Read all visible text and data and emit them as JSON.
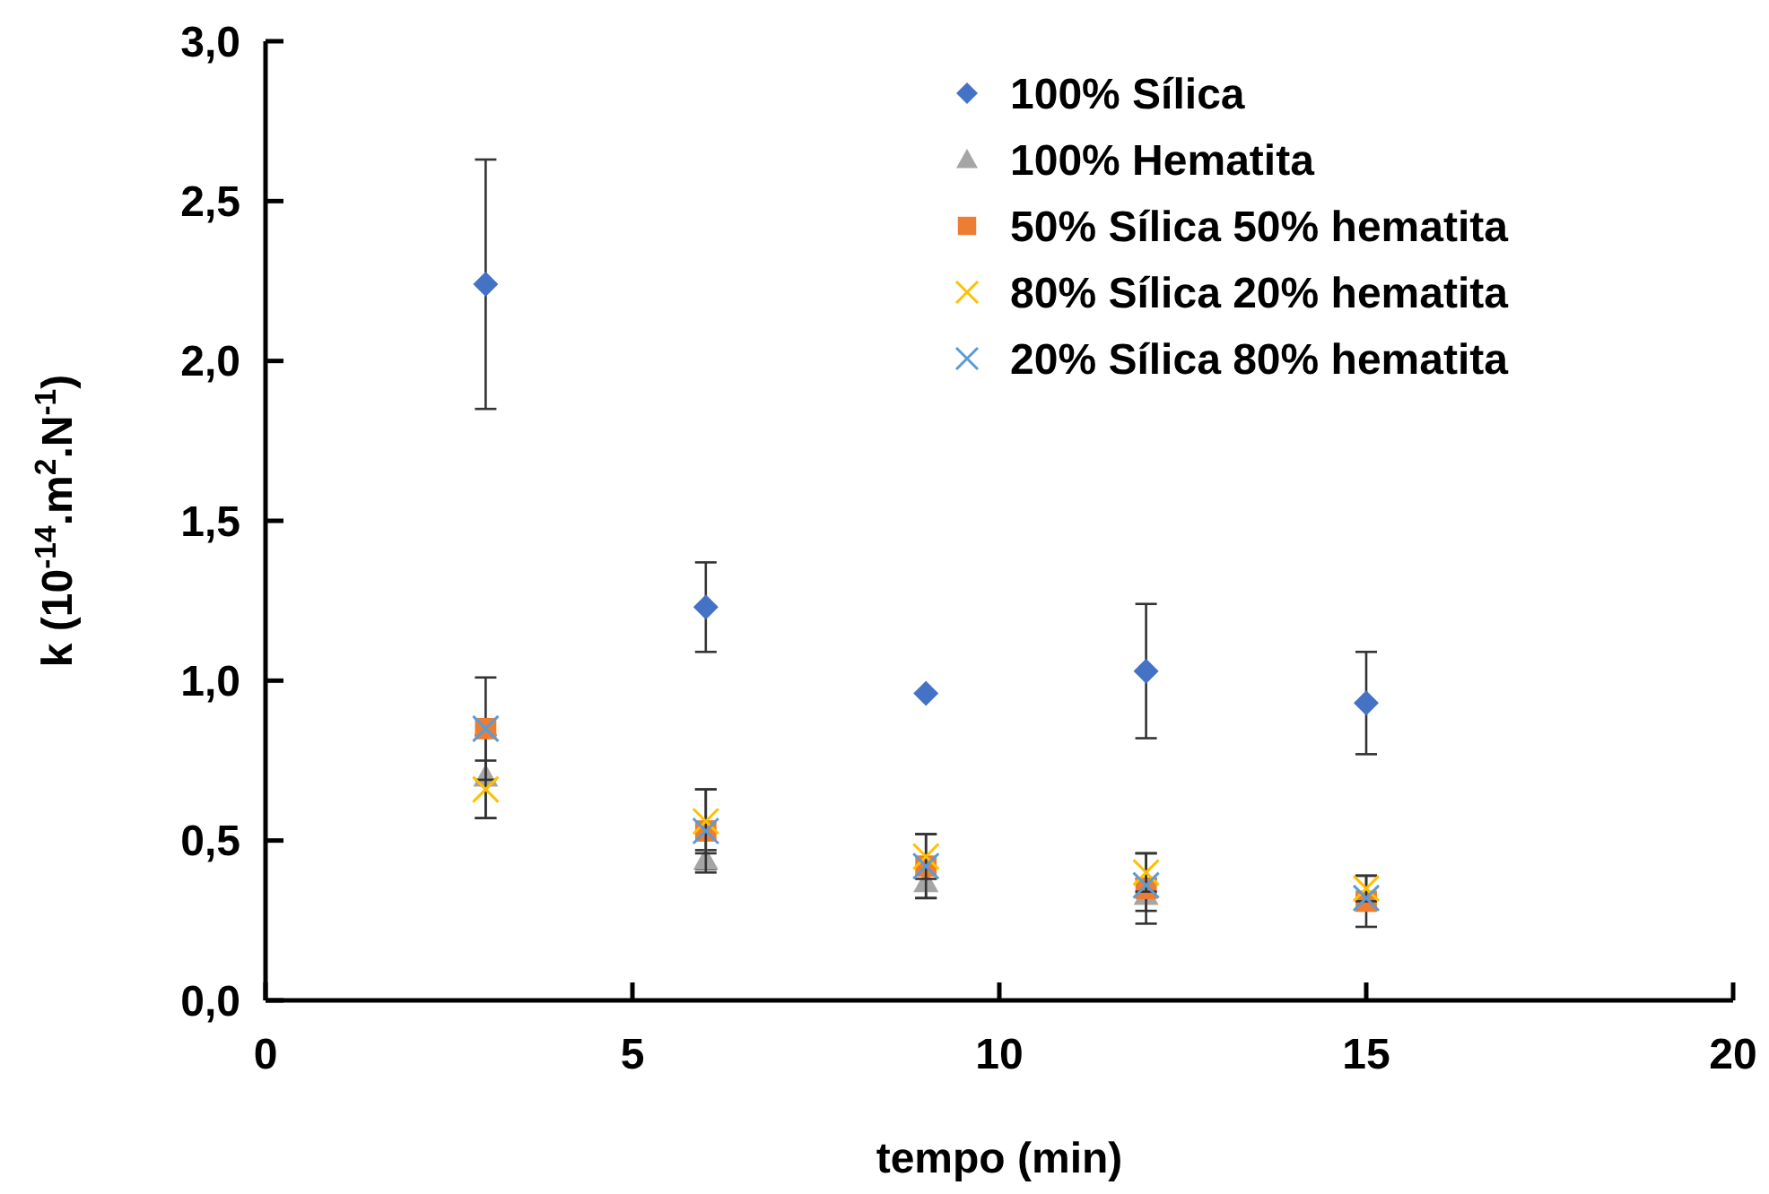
{
  "chart_data": {
    "type": "scatter",
    "xlabel": "tempo (min)",
    "ylabel": "k  (10$^{-14}$.m$^{2}$.N$^{-1}$)",
    "x": [
      3,
      6,
      9,
      12,
      15
    ],
    "xlim": [
      0,
      20
    ],
    "xticks": [
      0,
      5,
      10,
      15,
      20
    ],
    "ylim": [
      0,
      3
    ],
    "yticks": [
      {
        "value": 0,
        "label": "0,0"
      },
      {
        "value": 0.5,
        "label": "0,5"
      },
      {
        "value": 1,
        "label": "1,0"
      },
      {
        "value": 1.5,
        "label": "1,5"
      },
      {
        "value": 2,
        "label": "2,0"
      },
      {
        "value": 2.5,
        "label": "2,5"
      },
      {
        "value": 3,
        "label": "3,0"
      }
    ],
    "grid": false,
    "legend": "top right",
    "series": [
      {
        "name": "100% Sílica",
        "color": "#4472c4",
        "marker": "diamond",
        "values": [
          2.24,
          1.23,
          0.96,
          1.03,
          0.93
        ],
        "errors": [
          0.39,
          0.14,
          null,
          0.21,
          0.16
        ]
      },
      {
        "name": "100% Hematita",
        "color": "#a5a5a5",
        "marker": "triangle",
        "values": [
          0.7,
          0.44,
          0.37,
          0.33,
          null
        ],
        "errors": [
          0.13,
          0.03,
          0.05,
          0.05,
          null
        ]
      },
      {
        "name": "50% Sílica 50% hematita",
        "color": "#ed7d31",
        "marker": "square",
        "values": [
          0.85,
          0.53,
          0.42,
          0.35,
          0.31
        ],
        "errors": [
          0.16,
          0.13,
          0.1,
          0.11,
          0.08
        ]
      },
      {
        "name": "80% Sílica 20% hematita",
        "color": "#ffc000",
        "marker": "cross",
        "values": [
          0.66,
          0.56,
          0.45,
          0.4,
          0.35
        ],
        "errors": [
          0.09,
          0.1,
          0.07,
          0.06,
          0.04
        ]
      },
      {
        "name": "20% Sílica 80% hematita",
        "color": "#5b9bd5",
        "marker": "cross",
        "values": [
          0.85,
          0.53,
          0.42,
          0.36,
          0.32
        ]
      }
    ]
  }
}
